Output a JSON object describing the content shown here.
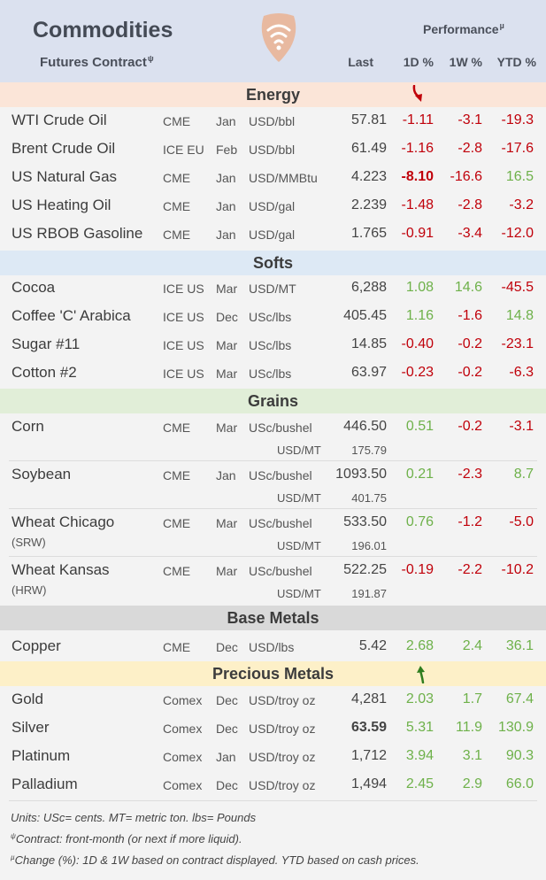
{
  "header": {
    "title": "Commodities",
    "subtitle": "Futures Contract",
    "subtitle_mark": "ψ",
    "performance": "Performance",
    "performance_mark": "µ",
    "col_last": "Last",
    "col_1d": "1D %",
    "col_1w": "1W %",
    "col_ytd": "YTD %"
  },
  "sections": {
    "energy": "Energy",
    "softs": "Softs",
    "grains": "Grains",
    "base": "Base Metals",
    "precious": "Precious Metals"
  },
  "energy": [
    {
      "name": "WTI Crude Oil",
      "exch": "CME",
      "month": "Jan",
      "unit": "USD/bbl",
      "last": "57.81",
      "d1": "-1.11",
      "w1": "-3.1",
      "ytd": "-19.3"
    },
    {
      "name": "Brent Crude Oil",
      "exch": "ICE EU",
      "month": "Feb",
      "unit": "USD/bbl",
      "last": "61.49",
      "d1": "-1.16",
      "w1": "-2.8",
      "ytd": "-17.6"
    },
    {
      "name": "US Natural Gas",
      "exch": "CME",
      "month": "Jan",
      "unit": "USD/MMBtu",
      "last": "4.223",
      "d1": "-8.10",
      "w1": "-16.6",
      "ytd": "16.5"
    },
    {
      "name": "US Heating Oil",
      "exch": "CME",
      "month": "Jan",
      "unit": "USD/gal",
      "last": "2.239",
      "d1": "-1.48",
      "w1": "-2.8",
      "ytd": "-3.2"
    },
    {
      "name": "US RBOB Gasoline",
      "exch": "CME",
      "month": "Jan",
      "unit": "USD/gal",
      "last": "1.765",
      "d1": "-0.91",
      "w1": "-3.4",
      "ytd": "-12.0"
    }
  ],
  "softs": [
    {
      "name": "Cocoa",
      "exch": "ICE US",
      "month": "Mar",
      "unit": "USD/MT",
      "last": "6,288",
      "d1": "1.08",
      "w1": "14.6",
      "ytd": "-45.5"
    },
    {
      "name": "Coffee 'C' Arabica",
      "exch": "ICE US",
      "month": "Dec",
      "unit": "USc/lbs",
      "last": "405.45",
      "d1": "1.16",
      "w1": "-1.6",
      "ytd": "14.8"
    },
    {
      "name": "Sugar #11",
      "exch": "ICE US",
      "month": "Mar",
      "unit": "USc/lbs",
      "last": "14.85",
      "d1": "-0.40",
      "w1": "-0.2",
      "ytd": "-23.1"
    },
    {
      "name": "Cotton #2",
      "exch": "ICE US",
      "month": "Mar",
      "unit": "USc/lbs",
      "last": "63.97",
      "d1": "-0.23",
      "w1": "-0.2",
      "ytd": "-6.3"
    }
  ],
  "grains": [
    {
      "name": "Corn",
      "name2": "",
      "exch": "CME",
      "month": "Mar",
      "unit": "USc/bushel",
      "last": "446.50",
      "unit2": "USD/MT",
      "last2": "175.79",
      "d1": "0.51",
      "w1": "-0.2",
      "ytd": "-3.1"
    },
    {
      "name": "Soybean",
      "name2": "",
      "exch": "CME",
      "month": "Jan",
      "unit": "USc/bushel",
      "last": "1093.50",
      "unit2": "USD/MT",
      "last2": "401.75",
      "d1": "0.21",
      "w1": "-2.3",
      "ytd": "8.7"
    },
    {
      "name": "Wheat Chicago",
      "name2": "(SRW)",
      "exch": "CME",
      "month": "Mar",
      "unit": "USc/bushel",
      "last": "533.50",
      "unit2": "USD/MT",
      "last2": "196.01",
      "d1": "0.76",
      "w1": "-1.2",
      "ytd": "-5.0"
    },
    {
      "name": "Wheat Kansas",
      "name2": "(HRW)",
      "exch": "CME",
      "month": "Mar",
      "unit": "USc/bushel",
      "last": "522.25",
      "unit2": "USD/MT",
      "last2": "191.87",
      "d1": "-0.19",
      "w1": "-2.2",
      "ytd": "-10.2"
    }
  ],
  "base": [
    {
      "name": "Copper",
      "exch": "CME",
      "month": "Dec",
      "unit": "USD/lbs",
      "last": "5.42",
      "d1": "2.68",
      "w1": "2.4",
      "ytd": "36.1"
    }
  ],
  "precious": [
    {
      "name": "Gold",
      "exch": "Comex",
      "month": "Dec",
      "unit": "USD/troy oz",
      "last": "4,281",
      "d1": "2.03",
      "w1": "1.7",
      "ytd": "67.4"
    },
    {
      "name": "Silver",
      "exch": "Comex",
      "month": "Dec",
      "unit": "USD/troy oz",
      "last": "63.59",
      "d1": "5.31",
      "w1": "11.9",
      "ytd": "130.9"
    },
    {
      "name": "Platinum",
      "exch": "Comex",
      "month": "Jan",
      "unit": "USD/troy oz",
      "last": "1,712",
      "d1": "3.94",
      "w1": "3.1",
      "ytd": "90.3"
    },
    {
      "name": "Palladium",
      "exch": "Comex",
      "month": "Dec",
      "unit": "USD/troy oz",
      "last": "1,494",
      "d1": "2.45",
      "w1": "2.9",
      "ytd": "66.0"
    }
  ],
  "notes": {
    "units": "Units: USc= cents.  MT= metric ton.  lbs= Pounds",
    "contract_mark": "ψ",
    "contract": "Contract: front-month (or next if more liquid).",
    "change_mark": "µ",
    "change": "Change (%): 1D & 1W based on contract displayed. YTD based on cash prices."
  },
  "colors": {
    "negative": "#c0000a",
    "positive": "#6eb14a",
    "header_bg": "#dbe1ef",
    "logo": "#e8b9a0"
  },
  "icons": [
    "signal-logo-icon",
    "arrow-down-icon",
    "arrow-up-icon"
  ]
}
